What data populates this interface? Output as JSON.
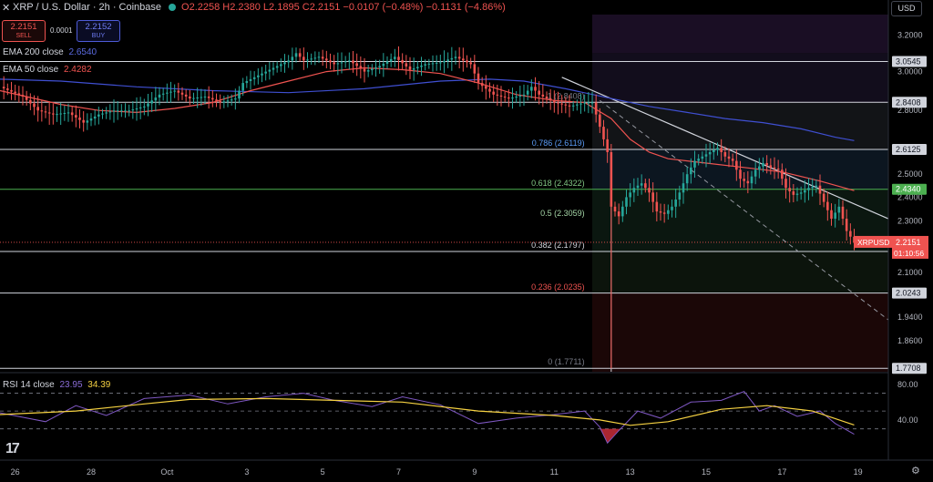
{
  "header": {
    "close_icon": "x-icon",
    "symbol": "XRP / U.S. Dollar · 2h · Coinbase",
    "status_color": "#26a69a",
    "ohlc": "O2.2258 H2.2380 L2.1895 C2.2151 −0.0107 (−0.48%) −0.1131 (−4.86%)",
    "sell_price": "2.2151",
    "sell_label": "SELL",
    "spread": "0.0001",
    "buy_price": "2.2152",
    "buy_label": "BUY",
    "currency": "USD"
  },
  "indicators": {
    "ema200_label": "EMA 200 close",
    "ema200_value": "2.6540",
    "ema200_color": "#3f4fd1",
    "ema50_label": "EMA 50 close",
    "ema50_value": "2.4282",
    "ema50_color": "#ef5350",
    "rsi_label": "RSI 14 close",
    "rsi_value": "23.95",
    "rsi_ma_value": "34.39",
    "rsi_color": "#7e57c2",
    "rsi_ma_color": "#f5d142"
  },
  "chart_data": {
    "type": "candlestick",
    "symbol": "XRPUSD",
    "timeframe": "2h",
    "x_ticks": [
      "26",
      "28",
      "Oct",
      "3",
      "5",
      "7",
      "9",
      "11",
      "13",
      "15",
      "17",
      "19"
    ],
    "y_ticks": [
      "3.2000",
      "3.0000",
      "2.8000",
      "2.5000",
      "2.4000",
      "2.3000",
      "2.1000",
      "1.9400",
      "1.8600"
    ],
    "y_scale": "log",
    "y_range": [
      1.76,
      3.32
    ],
    "x_range": [
      -6,
      228
    ],
    "last_price": "2.2151",
    "last_price_label": "XRPUSD",
    "countdown": "01:10:56",
    "price_levels": [
      {
        "value": 3.0545,
        "label": "3.0545"
      },
      {
        "value": 2.8408,
        "label": "2.8408"
      },
      {
        "value": 2.6125,
        "label": "2.6125"
      },
      {
        "value": 2.434,
        "label": "2.4340"
      },
      {
        "value": 2.1793,
        "label": "2.1793"
      },
      {
        "value": 2.0243,
        "label": "2.0243"
      },
      {
        "value": 1.7708,
        "label": "1.7708"
      }
    ],
    "fib_levels": [
      {
        "label": "1 (2.8408)",
        "value": 2.8408,
        "color": "#787b86"
      },
      {
        "label": "0.786 (2.6119)",
        "value": 2.6119,
        "color": "#5b9cf6"
      },
      {
        "label": "0.618 (2.4322)",
        "value": 2.4322,
        "color": "#81c784"
      },
      {
        "label": "0.5 (2.3059)",
        "value": 2.3059,
        "color": "#a5d6a7"
      },
      {
        "label": "0.382 (2.1797)",
        "value": 2.1797,
        "color": "#d1d4dc"
      },
      {
        "label": "0.236 (2.0235)",
        "value": 2.0235,
        "color": "#ef5350"
      },
      {
        "label": "0 (1.7711)",
        "value": 1.7711,
        "color": "#787b86"
      }
    ],
    "series": [
      {
        "name": "EMA 200 close",
        "points": [
          [
            -6,
            2.96
          ],
          [
            10,
            2.95
          ],
          [
            30,
            2.92
          ],
          [
            50,
            2.9
          ],
          [
            70,
            2.89
          ],
          [
            90,
            2.91
          ],
          [
            110,
            2.95
          ],
          [
            123,
            2.96
          ],
          [
            132,
            2.95
          ],
          [
            143,
            2.91
          ],
          [
            155,
            2.86
          ],
          [
            165,
            2.82
          ],
          [
            175,
            2.79
          ],
          [
            185,
            2.76
          ],
          [
            195,
            2.74
          ],
          [
            205,
            2.71
          ],
          [
            214,
            2.67
          ],
          [
            219,
            2.654
          ]
        ]
      },
      {
        "name": "EMA 50 close",
        "points": [
          [
            -6,
            2.9
          ],
          [
            10,
            2.83
          ],
          [
            20,
            2.8
          ],
          [
            30,
            2.79
          ],
          [
            40,
            2.81
          ],
          [
            50,
            2.84
          ],
          [
            60,
            2.9
          ],
          [
            70,
            2.95
          ],
          [
            80,
            3.0
          ],
          [
            90,
            3.02
          ],
          [
            100,
            3.01
          ],
          [
            110,
            2.99
          ],
          [
            120,
            2.94
          ],
          [
            130,
            2.88
          ],
          [
            140,
            2.85
          ],
          [
            148,
            2.84
          ],
          [
            155,
            2.76
          ],
          [
            160,
            2.66
          ],
          [
            165,
            2.6
          ],
          [
            170,
            2.57
          ],
          [
            180,
            2.55
          ],
          [
            190,
            2.53
          ],
          [
            200,
            2.51
          ],
          [
            210,
            2.47
          ],
          [
            219,
            2.4282
          ]
        ]
      },
      {
        "name": "Close",
        "points": [
          [
            -6,
            2.92
          ],
          [
            0,
            2.87
          ],
          [
            4,
            2.8
          ],
          [
            8,
            2.78
          ],
          [
            12,
            2.79
          ],
          [
            16,
            2.74
          ],
          [
            20,
            2.78
          ],
          [
            24,
            2.8
          ],
          [
            28,
            2.8
          ],
          [
            32,
            2.82
          ],
          [
            36,
            2.88
          ],
          [
            40,
            2.9
          ],
          [
            44,
            2.86
          ],
          [
            48,
            2.87
          ],
          [
            52,
            2.84
          ],
          [
            56,
            2.86
          ],
          [
            58,
            2.94
          ],
          [
            62,
            2.98
          ],
          [
            66,
            3.02
          ],
          [
            70,
            3.06
          ],
          [
            72,
            3.1
          ],
          [
            74,
            3.06
          ],
          [
            78,
            3.08
          ],
          [
            82,
            3.04
          ],
          [
            86,
            3.06
          ],
          [
            90,
            3.0
          ],
          [
            94,
            3.03
          ],
          [
            98,
            3.08
          ],
          [
            102,
            3.01
          ],
          [
            106,
            3.04
          ],
          [
            110,
            3.05
          ],
          [
            114,
            3.08
          ],
          [
            118,
            3.04
          ],
          [
            120,
            2.94
          ],
          [
            124,
            2.88
          ],
          [
            128,
            2.86
          ],
          [
            132,
            2.88
          ],
          [
            134,
            2.92
          ],
          [
            136,
            2.88
          ],
          [
            140,
            2.84
          ],
          [
            144,
            2.82
          ],
          [
            148,
            2.84
          ],
          [
            150,
            2.84
          ],
          [
            152,
            2.72
          ],
          [
            154,
            2.6
          ],
          [
            155,
            2.36
          ],
          [
            157,
            2.32
          ],
          [
            159,
            2.4
          ],
          [
            161,
            2.44
          ],
          [
            163,
            2.46
          ],
          [
            165,
            2.42
          ],
          [
            167,
            2.34
          ],
          [
            169,
            2.33
          ],
          [
            171,
            2.36
          ],
          [
            173,
            2.42
          ],
          [
            175,
            2.5
          ],
          [
            177,
            2.56
          ],
          [
            179,
            2.58
          ],
          [
            181,
            2.6
          ],
          [
            183,
            2.62
          ],
          [
            185,
            2.58
          ],
          [
            187,
            2.56
          ],
          [
            189,
            2.48
          ],
          [
            191,
            2.46
          ],
          [
            193,
            2.52
          ],
          [
            195,
            2.55
          ],
          [
            197,
            2.53
          ],
          [
            199,
            2.52
          ],
          [
            201,
            2.44
          ],
          [
            203,
            2.41
          ],
          [
            205,
            2.42
          ],
          [
            207,
            2.44
          ],
          [
            209,
            2.45
          ],
          [
            211,
            2.38
          ],
          [
            213,
            2.31
          ],
          [
            215,
            2.36
          ],
          [
            217,
            2.26
          ],
          [
            219,
            2.2151
          ]
        ]
      }
    ],
    "rsi": {
      "label": "RSI 14 close",
      "y_ticks": [
        "80.00",
        "40.00"
      ],
      "y_range": [
        0,
        90
      ],
      "bands": [
        70,
        50,
        30
      ],
      "rsi_points": [
        [
          -6,
          48
        ],
        [
          6,
          38
        ],
        [
          14,
          56
        ],
        [
          22,
          45
        ],
        [
          32,
          64
        ],
        [
          44,
          68
        ],
        [
          54,
          58
        ],
        [
          64,
          66
        ],
        [
          74,
          70
        ],
        [
          82,
          62
        ],
        [
          92,
          55
        ],
        [
          100,
          66
        ],
        [
          110,
          57
        ],
        [
          120,
          36
        ],
        [
          130,
          42
        ],
        [
          140,
          46
        ],
        [
          148,
          50
        ],
        [
          152,
          32
        ],
        [
          154,
          14
        ],
        [
          157,
          28
        ],
        [
          162,
          50
        ],
        [
          168,
          42
        ],
        [
          176,
          60
        ],
        [
          184,
          62
        ],
        [
          190,
          72
        ],
        [
          194,
          50
        ],
        [
          198,
          56
        ],
        [
          204,
          44
        ],
        [
          210,
          50
        ],
        [
          214,
          36
        ],
        [
          219,
          23.95
        ]
      ],
      "ma_points": [
        [
          -6,
          46
        ],
        [
          14,
          50
        ],
        [
          32,
          58
        ],
        [
          44,
          63
        ],
        [
          64,
          64
        ],
        [
          82,
          62
        ],
        [
          100,
          60
        ],
        [
          120,
          50
        ],
        [
          140,
          45
        ],
        [
          152,
          40
        ],
        [
          160,
          34
        ],
        [
          170,
          38
        ],
        [
          184,
          52
        ],
        [
          196,
          56
        ],
        [
          208,
          50
        ],
        [
          219,
          34.39
        ]
      ]
    },
    "oversold_fill_color": "#f23645"
  }
}
